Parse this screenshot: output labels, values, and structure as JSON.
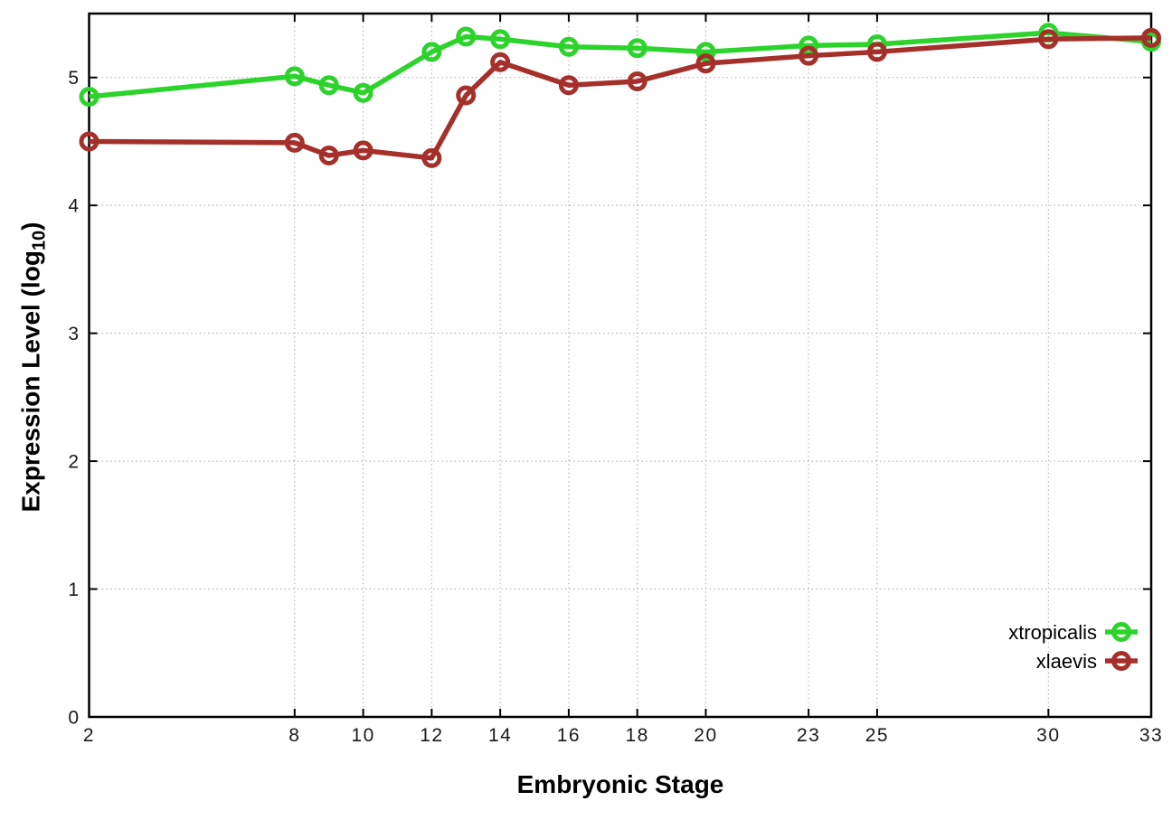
{
  "chart_data": {
    "type": "line",
    "title": "",
    "xlabel": "Embryonic Stage",
    "ylabel": {
      "prefix": "Expression Level (log",
      "sub": "10",
      "suffix": ")"
    },
    "x": [
      2,
      8,
      9,
      10,
      12,
      13,
      14,
      16,
      18,
      20,
      23,
      25,
      30,
      33
    ],
    "x_ticks": [
      2,
      8,
      10,
      12,
      14,
      16,
      18,
      20,
      23,
      25,
      30,
      33
    ],
    "y_ticks": [
      0,
      1,
      2,
      3,
      4,
      5
    ],
    "xlim": [
      2,
      33
    ],
    "ylim": [
      0,
      5.5
    ],
    "grid": true,
    "legend_position": "inside-right-lower",
    "marker": "open-circle",
    "series": [
      {
        "name": "xtropicalis",
        "color": "#2bd32b",
        "values": [
          4.85,
          5.01,
          4.94,
          4.88,
          5.2,
          5.32,
          5.3,
          5.24,
          5.23,
          5.2,
          5.25,
          5.26,
          5.35,
          5.28
        ]
      },
      {
        "name": "xlaevis",
        "color": "#a52f2a",
        "values": [
          4.5,
          4.49,
          4.39,
          4.43,
          4.37,
          4.86,
          5.12,
          4.94,
          4.97,
          5.11,
          5.17,
          5.2,
          5.3,
          5.31
        ]
      }
    ]
  },
  "colors": {
    "background": "#ffffff",
    "axis": "#000000",
    "grid": "#ababab",
    "tick_text": "#1a1a1a"
  }
}
